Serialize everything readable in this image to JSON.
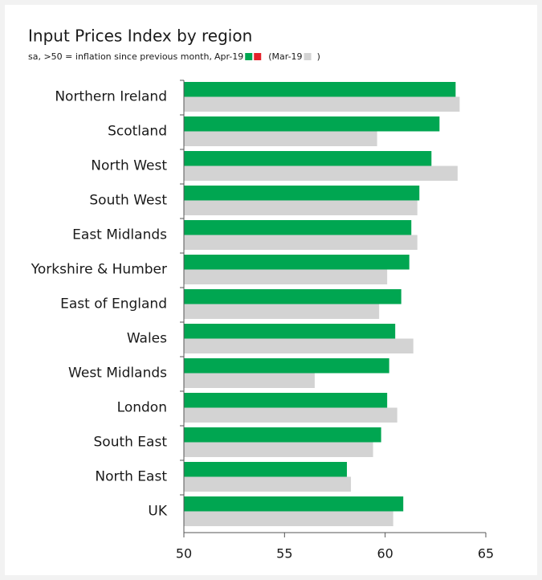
{
  "chart_data": {
    "type": "bar",
    "orientation": "horizontal",
    "title": "Input Prices Index by region",
    "subtitle": "sa, >50 = inflation since previous month,",
    "legend_close": ")",
    "categories": [
      "Northern Ireland",
      "Scotland",
      "North West",
      "South West",
      "East Midlands",
      "Yorkshire & Humber",
      "East of England",
      "Wales",
      "West Midlands",
      "London",
      "South East",
      "North East",
      "UK"
    ],
    "series": [
      {
        "name": "Apr-19",
        "color": "#00a651",
        "negative_color": "#e4222a",
        "values": [
          63.5,
          62.7,
          62.3,
          61.7,
          61.3,
          61.2,
          60.8,
          60.5,
          60.2,
          60.1,
          59.8,
          58.1,
          60.9
        ]
      },
      {
        "name": "(Mar-19",
        "color": "#d3d3d3",
        "values": [
          63.7,
          59.6,
          63.6,
          61.6,
          61.6,
          60.1,
          59.7,
          61.4,
          56.5,
          60.6,
          59.4,
          58.3,
          60.4
        ]
      }
    ],
    "xlim": [
      50,
      65
    ],
    "xticks": [
      50,
      55,
      60,
      65
    ]
  }
}
